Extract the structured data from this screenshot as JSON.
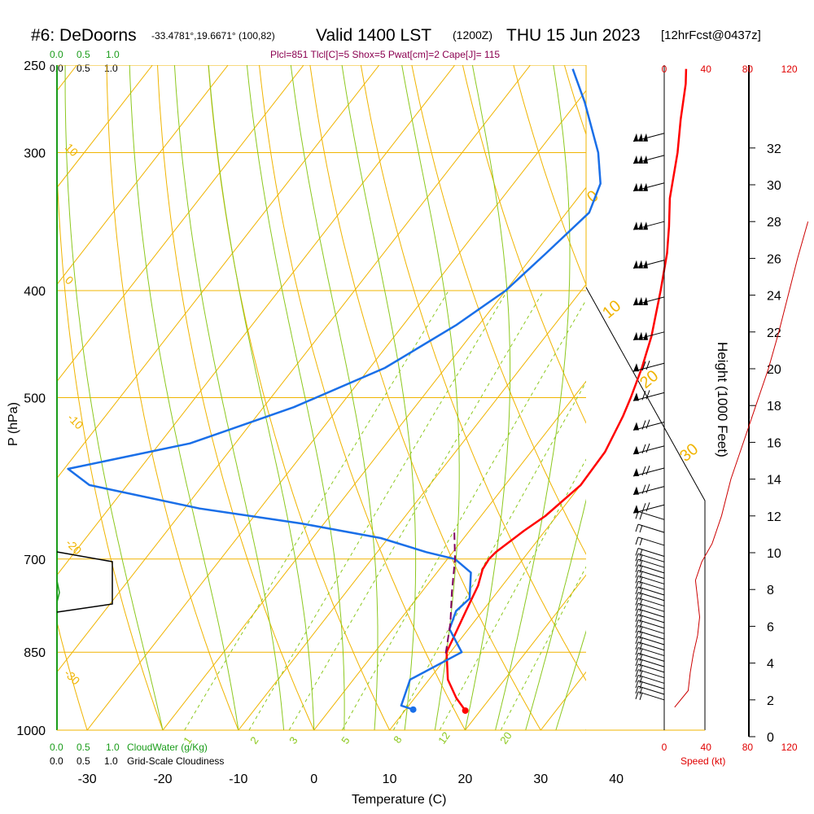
{
  "header": {
    "station": "#6: DeDoorns",
    "location": "-33.4781°,19.6671° (100,82)",
    "valid": "Valid 1400 LST",
    "zulu": "(1200Z)",
    "date": "THU 15 Jun 2023",
    "forecast": "[12hrFcst@0437z]",
    "indices": "Plcl=851 Tlcl[C]=5 Shox=5 Pwat[cm]=2 Cape[J]= 115"
  },
  "cloud_scales": {
    "top_green": [
      "0.0",
      "0.5",
      "1.0"
    ],
    "top_black": [
      "0.0",
      "0.5",
      "1.0"
    ],
    "bottom_green": [
      "0.0",
      "0.5",
      "1.0"
    ],
    "bottom_green_label": "CloudWater (g/Kg)",
    "bottom_black": [
      "0.0",
      "0.5",
      "1.0"
    ],
    "bottom_black_label": "Grid-Scale Cloudiness"
  },
  "colors": {
    "temperature": "#ff0000",
    "dewpoint": "#1a6fe8",
    "parcel": "#800060",
    "isotherm": "#f0b400",
    "dry_adiabat": "#f0b400",
    "moist_adiabat": "#8cc81e",
    "mixing_ratio": "#8cc81e",
    "wind_profile": "#cc0000",
    "cloud_water": "#1a9c1a"
  },
  "chart_data": {
    "type": "line",
    "subtype": "skew-T log-P sounding",
    "xlabel": "Temperature (C)",
    "ylabel": "P (hPa)",
    "x_ticks": [
      -30,
      -20,
      -10,
      0,
      10,
      20,
      30,
      40
    ],
    "y_ticks": [
      250,
      300,
      400,
      500,
      700,
      850,
      1000
    ],
    "pressure_range": [
      1000,
      250
    ],
    "temperature_range_at_1000": [
      -34,
      36
    ],
    "y_scale": "log",
    "dry_adiabat_labels": [
      "10",
      "0",
      "-10",
      "-20",
      "-30"
    ],
    "moist_adiabat_labels": [
      "0",
      "10",
      "20",
      "30"
    ],
    "mixing_ratio_labels": [
      "1",
      "2",
      "3",
      "5",
      "8",
      "12",
      "20"
    ],
    "series": [
      {
        "name": "Temperature",
        "points": [
          [
            960,
            18
          ],
          [
            935,
            15.5
          ],
          [
            900,
            12.5
          ],
          [
            850,
            9.5
          ],
          [
            820,
            8.8
          ],
          [
            780,
            7.8
          ],
          [
            740,
            6.8
          ],
          [
            715,
            5.7
          ],
          [
            700,
            5.5
          ],
          [
            690,
            5.7
          ],
          [
            660,
            7.2
          ],
          [
            640,
            8.5
          ],
          [
            600,
            10.0
          ],
          [
            560,
            9.8
          ],
          [
            520,
            8.5
          ],
          [
            500,
            7.6
          ],
          [
            470,
            6.0
          ],
          [
            440,
            4.0
          ],
          [
            400,
            0.5
          ],
          [
            370,
            -2.5
          ],
          [
            350,
            -5.0
          ],
          [
            330,
            -7.8
          ],
          [
            300,
            -11.5
          ],
          [
            280,
            -14.5
          ],
          [
            260,
            -17.5
          ],
          [
            252,
            -19.0
          ]
        ]
      },
      {
        "name": "Dewpoint",
        "points": [
          [
            958,
            11
          ],
          [
            950,
            9
          ],
          [
            900,
            7.5
          ],
          [
            850,
            11.5
          ],
          [
            810,
            7.5
          ],
          [
            780,
            6.5
          ],
          [
            760,
            7.0
          ],
          [
            720,
            4.5
          ],
          [
            700,
            1.0
          ],
          [
            690,
            -3.5
          ],
          [
            670,
            -11
          ],
          [
            650,
            -23
          ],
          [
            630,
            -38
          ],
          [
            600,
            -55
          ],
          [
            580,
            -59.5
          ],
          [
            550,
            -46
          ],
          [
            510,
            -36
          ],
          [
            470,
            -28
          ],
          [
            430,
            -23
          ],
          [
            400,
            -20
          ],
          [
            370,
            -18.5
          ],
          [
            340,
            -17
          ],
          [
            320,
            -18.5
          ],
          [
            300,
            -22
          ],
          [
            270,
            -29
          ],
          [
            252,
            -34
          ]
        ]
      },
      {
        "name": "Parcel",
        "points": [
          [
            852,
            9.5
          ],
          [
            800,
            7.0
          ],
          [
            750,
            4.0
          ],
          [
            700,
            1.0
          ],
          [
            660,
            -2.0
          ]
        ]
      }
    ],
    "surface_points": {
      "temperature": [
        960,
        18
      ],
      "dewpoint": [
        958,
        11
      ]
    },
    "wind_speed_axis": {
      "label": "Speed (kt)",
      "ticks": [
        0,
        40,
        80,
        120
      ]
    },
    "height_axis": {
      "label": "Height (1000 Feet)",
      "ticks": [
        0,
        2,
        4,
        6,
        8,
        10,
        12,
        14,
        16,
        18,
        20,
        22,
        24,
        26,
        28,
        30,
        32
      ]
    },
    "wind_speed_profile": [
      [
        1.6,
        10
      ],
      [
        2.5,
        23
      ],
      [
        3.5,
        25
      ],
      [
        4.5,
        28
      ],
      [
        5.5,
        32
      ],
      [
        6.5,
        34
      ],
      [
        7.5,
        32
      ],
      [
        8.5,
        30
      ],
      [
        9.5,
        36
      ],
      [
        10.5,
        46
      ],
      [
        12,
        55
      ],
      [
        14,
        64
      ],
      [
        16,
        76
      ],
      [
        18,
        88
      ],
      [
        20,
        100
      ],
      [
        22,
        110
      ],
      [
        24,
        119
      ],
      [
        26,
        128
      ],
      [
        28,
        138
      ]
    ],
    "wind_barb_heights": [
      2,
      2.3,
      2.6,
      2.9,
      3.2,
      3.5,
      3.8,
      4.1,
      4.4,
      4.7,
      5.0,
      5.3,
      5.6,
      5.9,
      6.2,
      6.5,
      6.8,
      7.1,
      7.4,
      7.7,
      8.0,
      8.3,
      8.6,
      8.9,
      9.2,
      9.5,
      9.8,
      10.4,
      11.1,
      11.8,
      12.6,
      13.6,
      14.6,
      15.8,
      17.1,
      18.7,
      20.3,
      22.0,
      23.9,
      25.9,
      28.0,
      30.1,
      31.6,
      32.8
    ]
  }
}
